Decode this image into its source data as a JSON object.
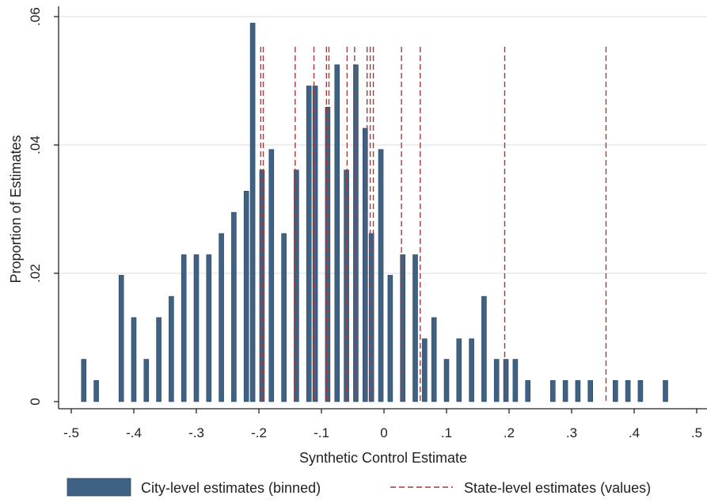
{
  "chart_data": {
    "type": "bar",
    "xlabel": "Synthetic Control Estimate",
    "ylabel": "Proportion of Estimates",
    "xlim": [
      -0.5,
      0.5
    ],
    "ylim": [
      0,
      0.06
    ],
    "x_ticks": [
      -0.5,
      -0.4,
      -0.3,
      -0.2,
      -0.1,
      0,
      0.1,
      0.2,
      0.3,
      0.4,
      0.5
    ],
    "x_tick_labels": [
      "-.5",
      "-.4",
      "-.3",
      "-.2",
      "-.1",
      "0",
      ".1",
      ".2",
      ".3",
      ".4",
      ".5"
    ],
    "y_ticks": [
      0,
      0.02,
      0.04,
      0.06
    ],
    "y_tick_labels": [
      "0",
      ".02",
      ".04",
      ".06"
    ],
    "grid": true,
    "legend_position": "bottom",
    "colors": {
      "bars": "#3f6183",
      "lines": "#a23a3a",
      "grid": "#dde6ea",
      "axis": "#222222"
    },
    "series": [
      {
        "name": "City-level estimates (binned)",
        "kind": "bar",
        "x": [
          -0.48,
          -0.46,
          -0.42,
          -0.4,
          -0.38,
          -0.36,
          -0.34,
          -0.32,
          -0.3,
          -0.28,
          -0.26,
          -0.24,
          -0.22,
          -0.21,
          -0.195,
          -0.18,
          -0.16,
          -0.14,
          -0.12,
          -0.11,
          -0.09,
          -0.075,
          -0.06,
          -0.045,
          -0.03,
          -0.02,
          -0.005,
          0.01,
          0.03,
          0.05,
          0.065,
          0.08,
          0.1,
          0.12,
          0.14,
          0.16,
          0.18,
          0.195,
          0.21,
          0.23,
          0.27,
          0.29,
          0.31,
          0.33,
          0.37,
          0.39,
          0.41,
          0.45
        ],
        "values": [
          0.0066,
          0.0033,
          0.0197,
          0.0131,
          0.0066,
          0.0131,
          0.0164,
          0.0229,
          0.0229,
          0.0229,
          0.0262,
          0.0295,
          0.0328,
          0.059,
          0.0361,
          0.0393,
          0.0262,
          0.0361,
          0.0492,
          0.0492,
          0.0459,
          0.0525,
          0.0361,
          0.0525,
          0.0426,
          0.0262,
          0.0393,
          0.0197,
          0.0229,
          0.0229,
          0.0098,
          0.0131,
          0.0066,
          0.0098,
          0.0098,
          0.0164,
          0.0066,
          0.0066,
          0.0066,
          0.0033,
          0.0033,
          0.0033,
          0.0033,
          0.0033,
          0.0033,
          0.0033,
          0.0033,
          0.0033
        ]
      },
      {
        "name": "State-level estimates (values)",
        "kind": "vline",
        "x": [
          -0.197,
          -0.193,
          -0.142,
          -0.112,
          -0.092,
          -0.088,
          -0.059,
          -0.047,
          -0.027,
          -0.022,
          -0.017,
          0.028,
          0.058,
          0.193,
          0.355
        ]
      }
    ]
  }
}
